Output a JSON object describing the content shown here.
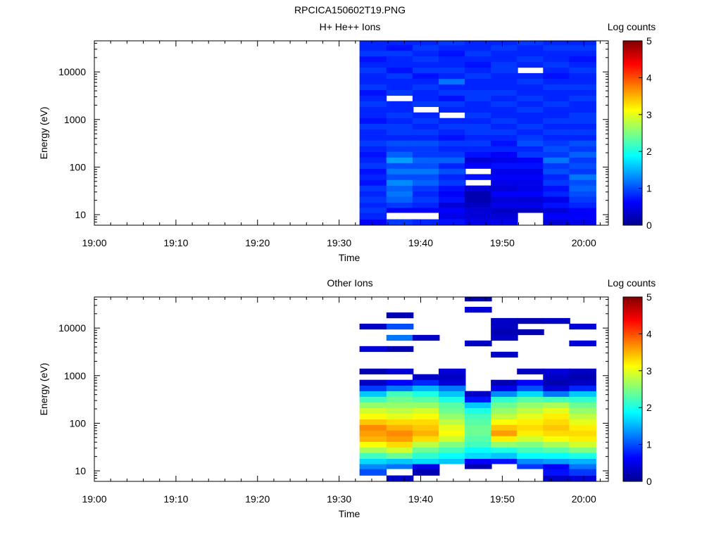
{
  "page_title": "RPCICA150602T19.PNG",
  "colormap": [
    "#00008f",
    "#0000ff",
    "#0080ff",
    "#00ffff",
    "#80ff80",
    "#ffff00",
    "#ff8000",
    "#ff0000",
    "#800000"
  ],
  "chart_data": [
    {
      "type": "heatmap",
      "title": "H+ He++ Ions",
      "xlabel": "Time",
      "ylabel": "Energy (eV)",
      "xlim": [
        "19:00",
        "20:03"
      ],
      "ylim": [
        6,
        45000
      ],
      "yscale": "log",
      "x_ticks": [
        "19:00",
        "19:10",
        "19:20",
        "19:30",
        "19:40",
        "19:50",
        "20:00"
      ],
      "y_ticks": [
        "10",
        "100",
        "1000",
        "10000"
      ],
      "colorbar": {
        "label": "Log counts",
        "range": [
          0,
          5
        ],
        "ticks": [
          "0",
          "1",
          "2",
          "3",
          "4",
          "5"
        ]
      },
      "time_columns": [
        "19:32.5",
        "19:35.8",
        "19:39.0",
        "19:42.2",
        "19:45.4",
        "19:48.6",
        "19:51.8",
        "19:55.0",
        "19:58.2"
      ],
      "energy_bins_eV": [
        6,
        8,
        11,
        14,
        18,
        24,
        31,
        41,
        54,
        71,
        93,
        122,
        160,
        210,
        276,
        362,
        475,
        623,
        818,
        1073,
        1408,
        1848,
        2425,
        3182,
        4175,
        5478,
        7188,
        9432,
        12376,
        16240,
        21310,
        27960,
        36690,
        45000
      ],
      "description_values": "log10 counts per cell; null = no data",
      "values": [
        [
          0.6,
          0.8,
          0.9,
          0.8,
          0.9,
          0.8,
          0.9,
          0.7,
          0.8,
          0.7,
          0.9,
          0.8,
          0.7,
          0.8,
          0.9,
          0.8,
          0.8,
          0.9,
          0.7,
          0.8,
          0.8,
          0.9,
          0.8,
          0.7,
          0.9,
          0.8,
          0.8,
          0.9,
          0.8,
          0.7,
          0.9,
          0.8,
          0.8
        ],
        [
          0.9,
          null,
          0.6,
          0.9,
          1.1,
          1.2,
          1.1,
          1.3,
          1.0,
          1.2,
          1.0,
          1.4,
          1.1,
          0.9,
          1.0,
          0.8,
          0.9,
          0.9,
          0.8,
          0.9,
          0.8,
          0.8,
          null,
          0.9,
          0.8,
          0.8,
          0.9,
          0.7,
          0.8,
          0.8,
          0.9,
          0.7,
          0.8
        ],
        [
          0.8,
          null,
          0.6,
          0.8,
          0.9,
          0.8,
          0.9,
          1.1,
          1.0,
          1.2,
          1.0,
          1.1,
          0.9,
          0.9,
          1.0,
          0.8,
          0.9,
          0.8,
          0.9,
          0.8,
          null,
          0.9,
          0.8,
          0.8,
          0.9,
          0.8,
          0.7,
          0.9,
          0.8,
          0.9,
          0.8,
          0.9,
          0.8
        ],
        [
          0.7,
          0.5,
          0.6,
          0.4,
          0.7,
          0.6,
          0.7,
          0.9,
          0.8,
          1.0,
          0.8,
          1.1,
          0.9,
          0.8,
          0.9,
          0.7,
          0.8,
          0.9,
          0.8,
          null,
          0.8,
          0.9,
          0.7,
          0.9,
          0.8,
          1.2,
          0.8,
          0.9,
          0.8,
          0.8,
          0.7,
          0.8,
          0.9
        ],
        [
          0.5,
          0.4,
          0.4,
          0.3,
          0.2,
          0.2,
          0.4,
          null,
          0.7,
          null,
          0.6,
          0.4,
          0.7,
          0.8,
          0.9,
          0.8,
          0.9,
          0.9,
          0.8,
          0.9,
          0.8,
          0.8,
          0.9,
          0.9,
          0.8,
          0.8,
          0.9,
          0.8,
          0.7,
          0.8,
          0.9,
          0.8,
          0.8
        ],
        [
          0.5,
          0.4,
          0.3,
          0.5,
          0.4,
          0.6,
          0.4,
          0.5,
          0.6,
          0.5,
          0.7,
          0.5,
          0.6,
          0.8,
          0.7,
          0.8,
          0.9,
          0.8,
          0.9,
          0.8,
          0.8,
          0.9,
          0.8,
          0.9,
          0.8,
          0.8,
          0.8,
          0.9,
          0.9,
          0.8,
          0.8,
          0.9,
          0.8
        ],
        [
          null,
          null,
          0.3,
          0.5,
          0.4,
          0.6,
          0.5,
          0.5,
          0.6,
          0.5,
          0.7,
          0.6,
          0.9,
          0.8,
          1.0,
          0.9,
          0.8,
          0.9,
          0.8,
          0.8,
          0.9,
          0.8,
          0.9,
          0.8,
          0.8,
          0.9,
          0.8,
          null,
          0.8,
          0.9,
          0.8,
          0.8,
          0.9
        ],
        [
          0.4,
          0.6,
          0.4,
          0.7,
          0.5,
          0.8,
          0.7,
          0.9,
          0.8,
          1.0,
          0.9,
          1.2,
          0.9,
          1.0,
          0.9,
          0.8,
          0.9,
          0.8,
          0.9,
          0.8,
          0.8,
          0.9,
          0.8,
          0.8,
          0.9,
          0.8,
          0.7,
          0.8,
          0.9,
          0.8,
          0.8,
          0.9,
          0.8
        ],
        [
          0.5,
          0.6,
          0.6,
          0.8,
          0.9,
          1.0,
          1.1,
          1.0,
          1.2,
          0.9,
          1.0,
          0.9,
          1.1,
          0.9,
          1.0,
          0.8,
          0.9,
          0.8,
          0.9,
          0.9,
          0.8,
          0.8,
          0.9,
          0.8,
          0.9,
          0.8,
          0.8,
          0.9,
          0.8,
          0.7,
          0.8,
          0.9,
          0.8
        ]
      ]
    },
    {
      "type": "heatmap",
      "title": "Other Ions",
      "xlabel": "Time",
      "ylabel": "Energy (eV)",
      "xlim": [
        "19:00",
        "20:03"
      ],
      "ylim": [
        6,
        45000
      ],
      "yscale": "log",
      "x_ticks": [
        "19:00",
        "19:10",
        "19:20",
        "19:30",
        "19:40",
        "19:50",
        "20:00"
      ],
      "y_ticks": [
        "10",
        "100",
        "1000",
        "10000"
      ],
      "colorbar": {
        "label": "Log counts",
        "range": [
          0,
          5
        ],
        "ticks": [
          "0",
          "1",
          "2",
          "3",
          "4",
          "5"
        ]
      },
      "time_columns": [
        "19:32.5",
        "19:35.8",
        "19:39.0",
        "19:42.2",
        "19:45.4",
        "19:48.6",
        "19:51.8",
        "19:55.0",
        "19:58.2"
      ],
      "energy_bins_eV": [
        6,
        8,
        11,
        14,
        18,
        24,
        31,
        41,
        54,
        71,
        93,
        122,
        160,
        210,
        276,
        362,
        475,
        623,
        818,
        1073,
        1408,
        1848,
        2425,
        3182,
        4175,
        5478,
        7188,
        9432,
        12376,
        16240,
        21310,
        27960,
        36690,
        45000
      ],
      "description_values": "log10 counts per cell; null = no data",
      "values": [
        [
          null,
          1.0,
          1.3,
          1.7,
          2.2,
          2.7,
          3.1,
          3.5,
          3.6,
          3.7,
          3.4,
          3.1,
          2.9,
          2.6,
          2.2,
          1.6,
          0.9,
          0.3,
          null,
          0.2,
          null,
          null,
          null,
          0.4,
          null,
          null,
          null,
          0.3,
          null,
          null,
          null,
          null,
          null
        ],
        [
          0.3,
          null,
          1.2,
          1.6,
          2.4,
          2.9,
          3.3,
          3.6,
          3.7,
          3.5,
          3.3,
          3.0,
          2.8,
          2.6,
          2.4,
          2.2,
          1.2,
          0.6,
          null,
          0.4,
          null,
          null,
          null,
          0.2,
          null,
          1.2,
          null,
          1.0,
          null,
          0.2,
          null,
          null,
          null
        ],
        [
          null,
          0.2,
          0.5,
          1.7,
          2.1,
          2.4,
          2.8,
          3.3,
          3.5,
          3.4,
          3.3,
          3.1,
          2.9,
          2.6,
          2.3,
          2.0,
          1.5,
          0.8,
          0.3,
          null,
          null,
          null,
          null,
          null,
          null,
          0.3,
          null,
          null,
          null,
          null,
          null,
          null,
          null
        ],
        [
          null,
          null,
          null,
          1.6,
          1.9,
          2.2,
          2.5,
          2.9,
          3.1,
          3.0,
          2.8,
          2.6,
          2.4,
          2.3,
          2.0,
          1.6,
          1.2,
          0.4,
          0.3,
          0.4,
          null,
          null,
          null,
          null,
          null,
          null,
          null,
          null,
          null,
          null,
          null,
          null,
          null
        ],
        [
          null,
          null,
          0.2,
          0.6,
          1.7,
          1.9,
          2.2,
          2.3,
          2.4,
          2.4,
          2.3,
          2.2,
          2.0,
          1.6,
          0.7,
          0.3,
          null,
          null,
          null,
          null,
          null,
          null,
          null,
          null,
          0.3,
          null,
          null,
          null,
          null,
          null,
          0.4,
          null,
          0.2
        ],
        [
          null,
          null,
          null,
          0.7,
          1.6,
          2.0,
          2.6,
          3.2,
          3.6,
          3.4,
          3.1,
          2.8,
          2.6,
          2.4,
          2.1,
          1.3,
          0.5,
          0.2,
          null,
          null,
          null,
          null,
          0.3,
          null,
          null,
          0.3,
          0.2,
          0.3,
          0.3,
          null,
          null,
          null,
          null
        ],
        [
          null,
          null,
          0.9,
          1.3,
          1.9,
          2.2,
          2.5,
          2.9,
          3.2,
          3.3,
          3.2,
          3.0,
          2.8,
          2.6,
          2.3,
          1.7,
          1.0,
          0.6,
          null,
          0.3,
          null,
          null,
          null,
          null,
          null,
          null,
          0.2,
          null,
          0.2,
          null,
          null,
          null,
          null
        ],
        [
          0.3,
          0.7,
          0.6,
          1.4,
          1.9,
          2.3,
          2.7,
          3.1,
          3.3,
          3.4,
          3.3,
          3.2,
          3.0,
          2.7,
          2.2,
          1.2,
          0.4,
          0.2,
          0.3,
          0.4,
          null,
          null,
          null,
          null,
          null,
          null,
          null,
          null,
          0.3,
          null,
          null,
          null,
          null
        ],
        [
          0.4,
          0.9,
          1.2,
          1.5,
          2.0,
          2.5,
          2.9,
          3.2,
          3.3,
          3.2,
          3.0,
          2.8,
          2.6,
          2.4,
          2.1,
          1.6,
          0.8,
          0.3,
          0.2,
          0.3,
          null,
          null,
          null,
          null,
          0.4,
          null,
          null,
          0.4,
          null,
          null,
          null,
          null,
          null
        ]
      ]
    }
  ]
}
